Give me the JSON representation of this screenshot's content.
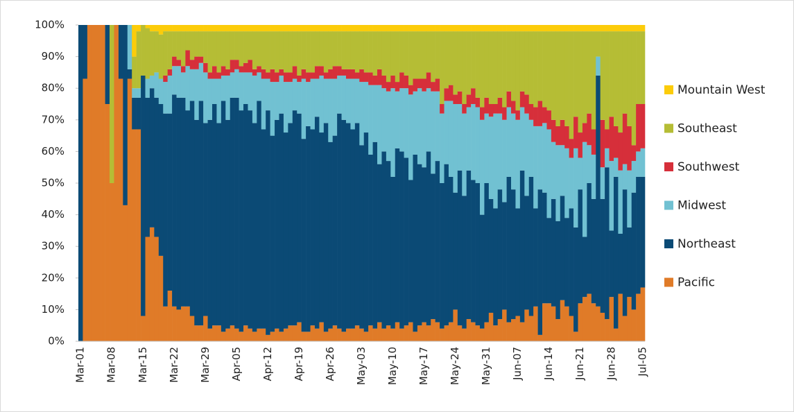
{
  "chart_data": {
    "type": "stacked_bar",
    "categories": [
      "Mar-01",
      null,
      null,
      null,
      null,
      null,
      null,
      "Mar-08",
      null,
      null,
      null,
      null,
      null,
      null,
      "Mar-15",
      null,
      null,
      null,
      null,
      null,
      null,
      "Mar-22",
      null,
      null,
      null,
      null,
      null,
      null,
      "Mar-29",
      null,
      null,
      null,
      null,
      null,
      null,
      "Apr-05",
      null,
      null,
      null,
      null,
      null,
      null,
      "Apr-12",
      null,
      null,
      null,
      null,
      null,
      null,
      "Apr-19",
      null,
      null,
      null,
      null,
      null,
      null,
      "Apr-26",
      null,
      null,
      null,
      null,
      null,
      null,
      "May-03",
      null,
      null,
      null,
      null,
      null,
      null,
      "May-10",
      null,
      null,
      null,
      null,
      null,
      null,
      "May-17",
      null,
      null,
      null,
      null,
      null,
      null,
      "May-24",
      null,
      null,
      null,
      null,
      null,
      null,
      "May-31",
      null,
      null,
      null,
      null,
      null,
      null,
      "Jun-07",
      null,
      null,
      null,
      null,
      null,
      null,
      "Jun-14",
      null,
      null,
      null,
      null,
      null,
      null,
      "Jun-21",
      null,
      null,
      null,
      null,
      null,
      null,
      "Jun-28",
      null,
      null,
      null,
      null,
      null,
      null,
      "Jul-05"
    ],
    "series": [
      {
        "name": "Pacific",
        "color": "#E07B28",
        "values": [
          0,
          83,
          100,
          100,
          100,
          100,
          75,
          50,
          100,
          83,
          43,
          83,
          67,
          67,
          8,
          33,
          36,
          33,
          27,
          11,
          16,
          11,
          10,
          11,
          11,
          8,
          5,
          5,
          8,
          4,
          5,
          5,
          3,
          4,
          5,
          4,
          3,
          5,
          4,
          3,
          4,
          4,
          2,
          3,
          4,
          3,
          4,
          5,
          5,
          6,
          3,
          3,
          5,
          4,
          6,
          3,
          4,
          5,
          4,
          3,
          4,
          4,
          5,
          4,
          3,
          5,
          4,
          6,
          4,
          5,
          4,
          6,
          4,
          5,
          6,
          3,
          5,
          6,
          5,
          7,
          6,
          4,
          5,
          6,
          10,
          5,
          4,
          7,
          6,
          5,
          4,
          6,
          9,
          5,
          7,
          10,
          6,
          7,
          8,
          6,
          10,
          8,
          11,
          2,
          12,
          12,
          11,
          7,
          13,
          11,
          8,
          3,
          12,
          14,
          15,
          12,
          11,
          9,
          7,
          14,
          4,
          15,
          8,
          14,
          10,
          15,
          17
        ]
      },
      {
        "name": "Northeast",
        "color": "#0B4A75",
        "values": [
          100,
          17,
          0,
          0,
          0,
          0,
          25,
          0,
          0,
          17,
          57,
          3,
          10,
          10,
          76,
          44,
          44,
          44,
          48,
          61,
          56,
          67,
          67,
          66,
          62,
          68,
          65,
          71,
          61,
          66,
          70,
          64,
          73,
          66,
          72,
          73,
          70,
          70,
          69,
          66,
          72,
          63,
          71,
          62,
          66,
          69,
          62,
          64,
          68,
          66,
          61,
          65,
          62,
          67,
          60,
          66,
          59,
          60,
          68,
          67,
          65,
          63,
          64,
          58,
          63,
          54,
          59,
          50,
          56,
          52,
          48,
          55,
          56,
          53,
          45,
          56,
          51,
          49,
          55,
          46,
          51,
          46,
          51,
          46,
          37,
          49,
          42,
          47,
          45,
          45,
          36,
          44,
          36,
          37,
          41,
          34,
          46,
          41,
          34,
          48,
          36,
          44,
          31,
          46,
          35,
          27,
          34,
          31,
          33,
          28,
          34,
          33,
          36,
          19,
          35,
          33,
          73,
          36,
          48,
          21,
          48,
          19,
          40,
          22,
          37,
          37,
          35
        ]
      },
      {
        "name": "Midwest",
        "color": "#71C1D2",
        "values": [
          0,
          0,
          0,
          0,
          0,
          0,
          0,
          0,
          0,
          0,
          0,
          14,
          3,
          3,
          0,
          6,
          4,
          8,
          8,
          10,
          12,
          9,
          10,
          8,
          14,
          10,
          16,
          12,
          16,
          13,
          8,
          14,
          8,
          14,
          8,
          9,
          12,
          10,
          12,
          15,
          9,
          16,
          10,
          17,
          12,
          12,
          16,
          13,
          10,
          10,
          19,
          14,
          16,
          12,
          18,
          14,
          20,
          18,
          12,
          14,
          14,
          16,
          14,
          20,
          16,
          22,
          18,
          25,
          20,
          22,
          28,
          18,
          20,
          22,
          27,
          20,
          24,
          24,
          20,
          26,
          22,
          22,
          20,
          24,
          28,
          21,
          26,
          20,
          24,
          24,
          30,
          22,
          26,
          30,
          24,
          26,
          22,
          24,
          28,
          20,
          26,
          18,
          26,
          20,
          22,
          28,
          18,
          24,
          16,
          22,
          16,
          25,
          10,
          30,
          12,
          14,
          6,
          10,
          6,
          22,
          6,
          20,
          8,
          18,
          10,
          8,
          9
        ]
      },
      {
        "name": "Southwest",
        "color": "#D62F3A",
        "values": [
          0,
          0,
          0,
          0,
          0,
          0,
          0,
          0,
          0,
          0,
          0,
          0,
          0,
          0,
          0,
          0,
          0,
          0,
          0,
          2,
          2,
          3,
          2,
          2,
          5,
          3,
          4,
          2,
          3,
          2,
          4,
          2,
          3,
          2,
          4,
          3,
          2,
          3,
          4,
          2,
          2,
          3,
          2,
          4,
          3,
          2,
          3,
          3,
          4,
          2,
          3,
          3,
          2,
          4,
          3,
          2,
          3,
          4,
          3,
          2,
          3,
          3,
          2,
          4,
          3,
          4,
          3,
          5,
          4,
          3,
          4,
          3,
          5,
          4,
          3,
          4,
          3,
          4,
          5,
          3,
          4,
          3,
          4,
          5,
          3,
          4,
          3,
          4,
          5,
          3,
          4,
          5,
          4,
          3,
          5,
          4,
          5,
          4,
          3,
          5,
          6,
          5,
          6,
          8,
          5,
          6,
          7,
          6,
          8,
          7,
          6,
          10,
          8,
          6,
          10,
          8,
          0,
          15,
          6,
          14,
          10,
          12,
          16,
          14,
          5,
          15,
          14
        ]
      },
      {
        "name": "Southeast",
        "color": "#B5BD35",
        "values": [
          0,
          0,
          0,
          0,
          0,
          0,
          0,
          50,
          0,
          0,
          0,
          0,
          10,
          18,
          16,
          16,
          14,
          13,
          14,
          14,
          12,
          8,
          9,
          11,
          6,
          9,
          8,
          8,
          10,
          13,
          11,
          13,
          11,
          12,
          9,
          9,
          11,
          10,
          9,
          12,
          11,
          12,
          13,
          12,
          13,
          12,
          13,
          13,
          11,
          14,
          12,
          13,
          13,
          11,
          11,
          13,
          12,
          11,
          11,
          12,
          12,
          12,
          13,
          12,
          13,
          13,
          14,
          12,
          14,
          16,
          14,
          16,
          13,
          14,
          17,
          15,
          15,
          15,
          13,
          16,
          15,
          23,
          18,
          17,
          20,
          19,
          23,
          20,
          18,
          21,
          24,
          21,
          23,
          23,
          21,
          24,
          19,
          22,
          25,
          19,
          20,
          23,
          24,
          22,
          24,
          25,
          28,
          30,
          28,
          30,
          34,
          27,
          32,
          29,
          26,
          31,
          8,
          28,
          31,
          27,
          30,
          32,
          26,
          30,
          36,
          23,
          23
        ]
      },
      {
        "name": "Mountain West",
        "color": "#FCCC0A",
        "values": [
          0,
          0,
          0,
          0,
          0,
          0,
          0,
          0,
          0,
          0,
          0,
          0,
          10,
          2,
          0,
          1,
          2,
          2,
          3,
          2,
          2,
          2,
          2,
          2,
          2,
          2,
          2,
          2,
          2,
          2,
          2,
          2,
          2,
          2,
          2,
          2,
          2,
          2,
          2,
          2,
          2,
          2,
          2,
          2,
          2,
          2,
          2,
          2,
          2,
          2,
          2,
          2,
          2,
          2,
          2,
          2,
          2,
          2,
          2,
          2,
          2,
          2,
          2,
          2,
          2,
          2,
          2,
          2,
          2,
          2,
          2,
          2,
          2,
          2,
          2,
          2,
          2,
          2,
          2,
          2,
          2,
          2,
          2,
          2,
          2,
          2,
          2,
          2,
          2,
          2,
          2,
          2,
          2,
          2,
          2,
          2,
          2,
          2,
          2,
          2,
          2,
          2,
          2,
          2,
          2,
          2,
          2,
          2,
          2,
          2,
          2,
          2,
          2,
          2,
          2,
          2,
          2,
          2,
          2,
          2,
          2,
          2,
          2,
          2,
          2,
          2,
          2
        ]
      }
    ],
    "ylim": [
      0,
      100
    ],
    "yticks": [
      {
        "value": 0,
        "label": "0%"
      },
      {
        "value": 10,
        "label": "10%"
      },
      {
        "value": 20,
        "label": "20%"
      },
      {
        "value": 30,
        "label": "30%"
      },
      {
        "value": 40,
        "label": "40%"
      },
      {
        "value": 50,
        "label": "50%"
      },
      {
        "value": 60,
        "label": "60%"
      },
      {
        "value": 70,
        "label": "70%"
      },
      {
        "value": 80,
        "label": "80%"
      },
      {
        "value": 90,
        "label": "90%"
      },
      {
        "value": 100,
        "label": "100%"
      }
    ],
    "legend": "right"
  }
}
